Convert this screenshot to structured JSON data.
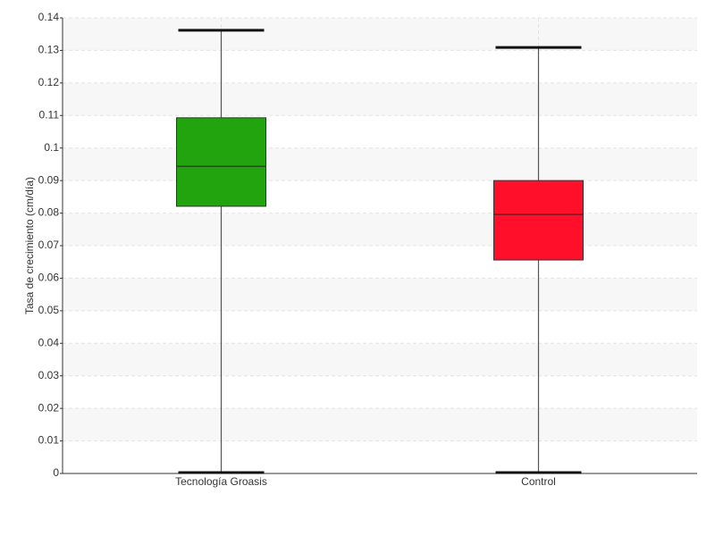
{
  "chart_data": {
    "type": "box",
    "y_label": "Tasa de crecimiento (cm/día)",
    "categories": [
      "Tecnología Groasis",
      "Control"
    ],
    "boxes": [
      {
        "min": 0,
        "q1": 0.0821,
        "median": 0.0944,
        "q3": 0.1093,
        "max": 0.1362,
        "color": "#22a40f"
      },
      {
        "min": 0,
        "q1": 0.0656,
        "median": 0.0796,
        "q3": 0.09,
        "max": 0.1309,
        "color": "#ff0f2a"
      }
    ],
    "ylim": [
      0,
      0.14
    ],
    "yticks": [
      0,
      0.01,
      0.02,
      0.03,
      0.04,
      0.05,
      0.06,
      0.07,
      0.08,
      0.09,
      0.1,
      0.11,
      0.12,
      0.13,
      0.14
    ],
    "grid": true
  }
}
